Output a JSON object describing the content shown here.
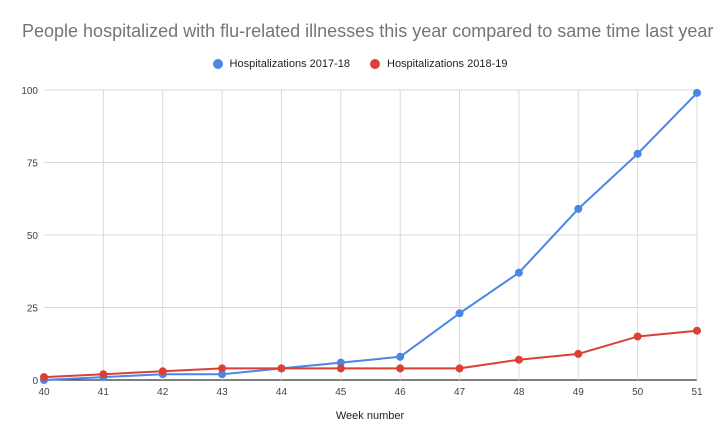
{
  "chart_data": {
    "type": "line",
    "title": "People hospitalized with flu-related illnesses this year compared to same time last year",
    "xlabel": "Week number",
    "ylabel": "",
    "x": [
      40,
      41,
      42,
      43,
      44,
      45,
      46,
      47,
      48,
      49,
      50,
      51
    ],
    "ylim": [
      0,
      100
    ],
    "yticks": [
      0,
      25,
      50,
      75,
      100
    ],
    "grid": true,
    "legend_position": "top",
    "series": [
      {
        "name": "Hospitalizations 2017-18",
        "color": "#4a86e8",
        "values": [
          0,
          1,
          2,
          2,
          4,
          6,
          8,
          23,
          37,
          59,
          78,
          99
        ]
      },
      {
        "name": "Hospitalizations 2018-19",
        "color": "#dc3f35",
        "values": [
          1,
          2,
          3,
          4,
          4,
          4,
          4,
          4,
          7,
          9,
          15,
          17
        ]
      }
    ]
  }
}
